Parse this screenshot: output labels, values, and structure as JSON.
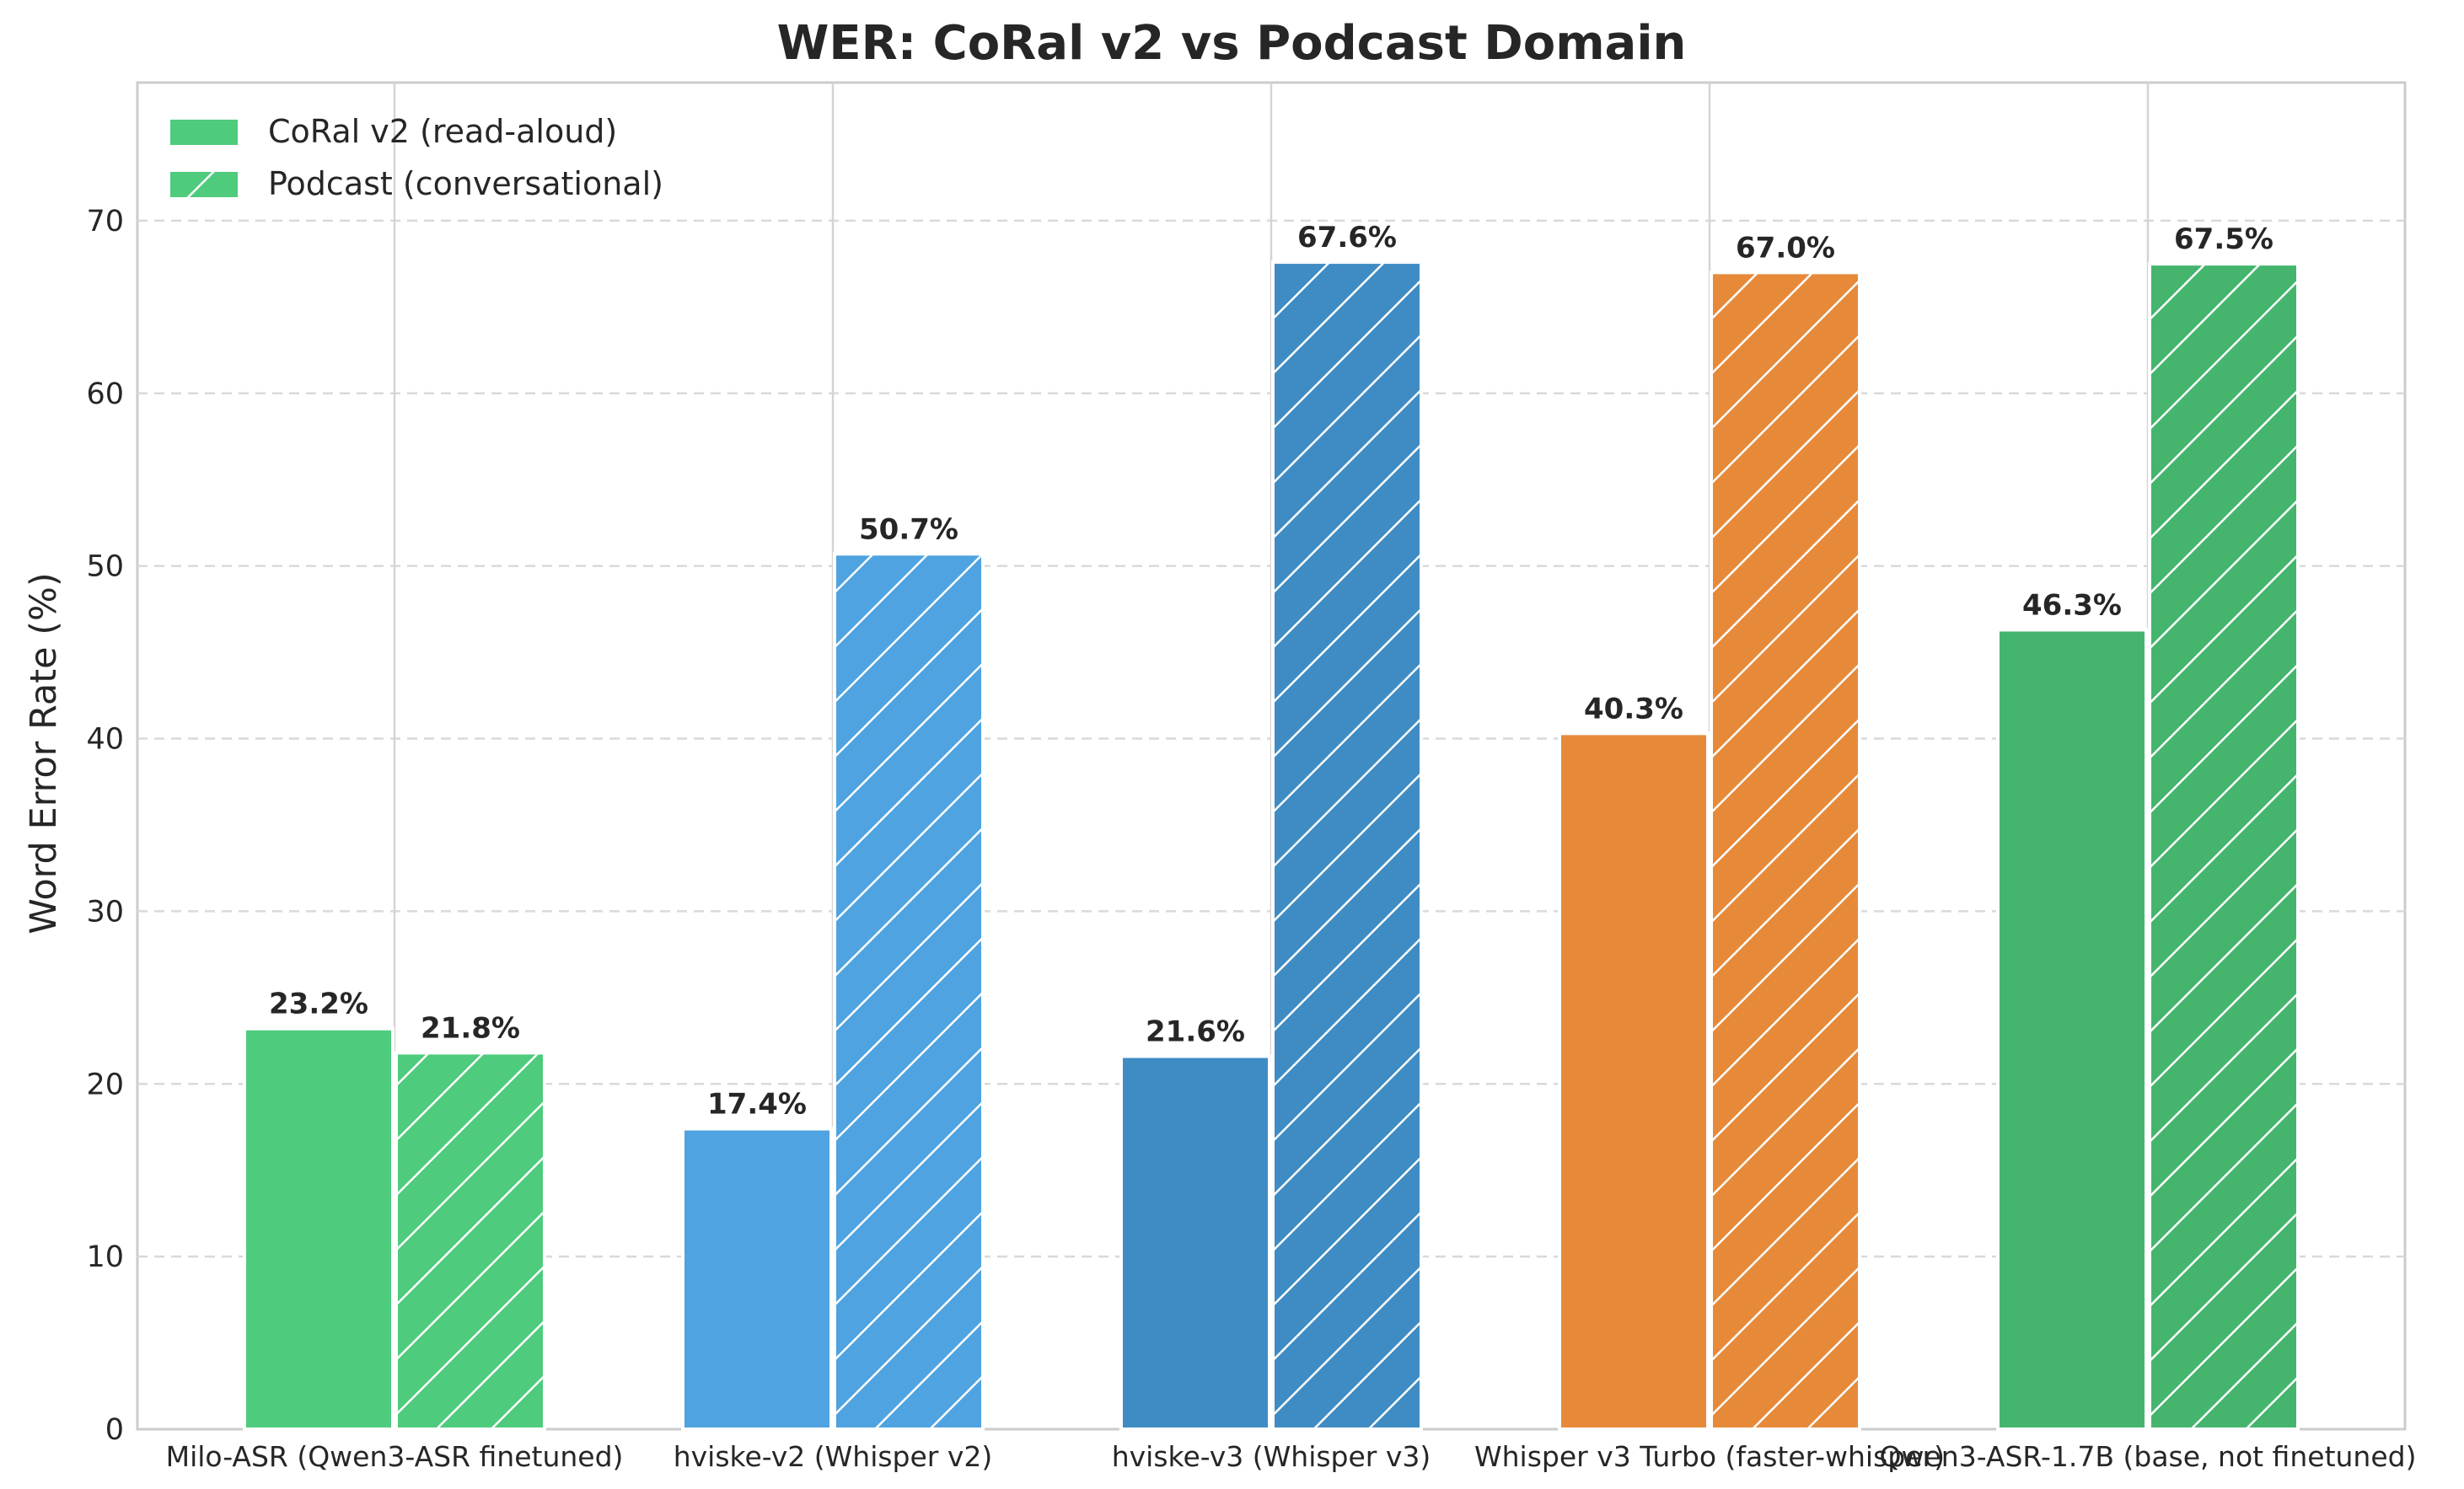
{
  "chart_data": {
    "type": "bar",
    "title": "WER: CoRal v2 vs Podcast Domain",
    "xlabel": "",
    "ylabel": "Word Error Rate (%)",
    "ylim": [
      0,
      78
    ],
    "yticks": [
      0,
      10,
      20,
      30,
      40,
      50,
      60,
      70
    ],
    "grid": "y-dashed",
    "legend_position": "top-left",
    "categories": [
      "Milo-ASR (Qwen3-ASR finetuned)",
      "hviske-v2 (Whisper v2)",
      "hviske-v3 (Whisper v3)",
      "Whisper v3 Turbo (faster-whisper)",
      "Qwen3-ASR-1.7B (base, not finetuned)"
    ],
    "category_colors": [
      "#4ecb7d",
      "#4fa3e0",
      "#3f8cc4",
      "#e68a3a",
      "#45b56e"
    ],
    "series": [
      {
        "name": "CoRal v2 (read-aloud)",
        "pattern": "solid",
        "values": [
          23.2,
          17.4,
          21.6,
          40.3,
          46.3
        ],
        "labels": [
          "23.2%",
          "17.4%",
          "21.6%",
          "40.3%",
          "46.3%"
        ]
      },
      {
        "name": "Podcast (conversational)",
        "pattern": "hatched",
        "values": [
          21.8,
          50.7,
          67.6,
          67.0,
          67.5
        ],
        "labels": [
          "21.8%",
          "50.7%",
          "67.6%",
          "67.0%",
          "67.5%"
        ]
      }
    ]
  }
}
